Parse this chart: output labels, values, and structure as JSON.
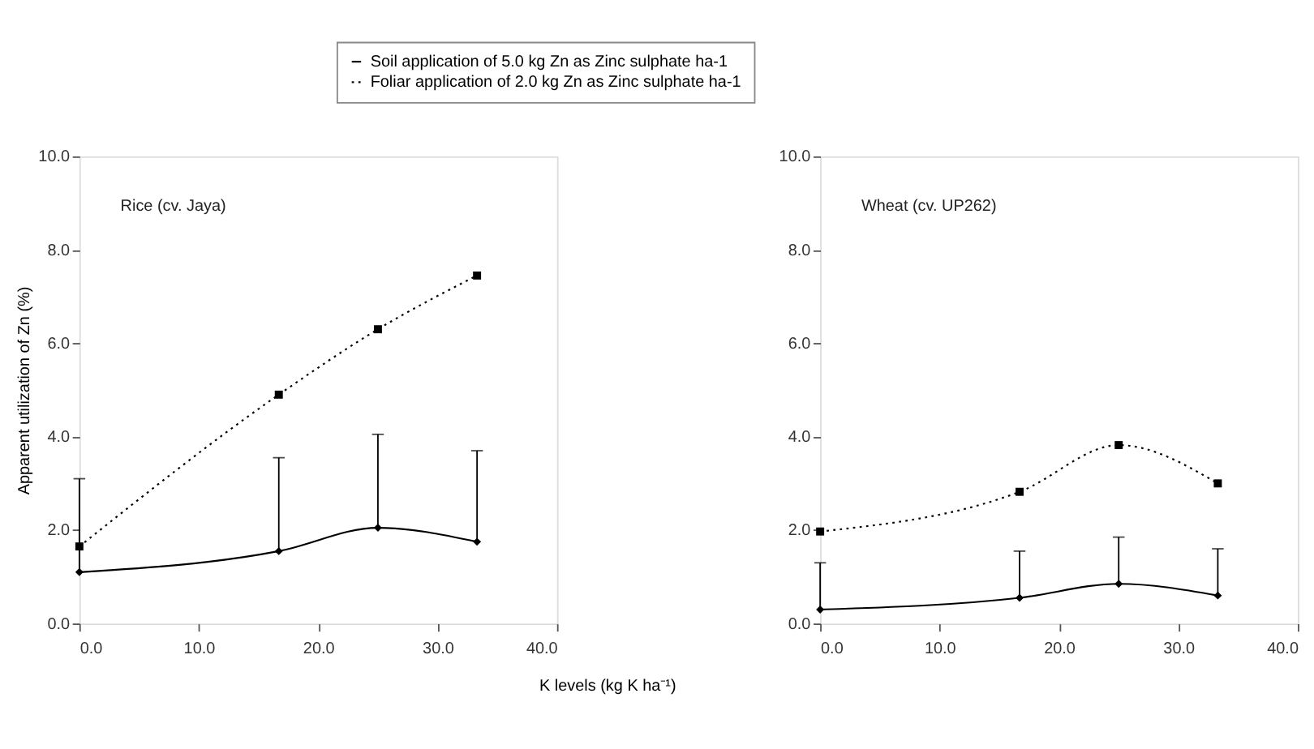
{
  "chart_data": [
    {
      "type": "line",
      "title": "Rice (cv. Jaya)",
      "xlabel": "K levels (kg K ha⁻¹)",
      "ylabel": "Apparent utilization of Zn (%)",
      "x": [
        0,
        16.7,
        25,
        33.3
      ],
      "series": [
        {
          "name": "Soil application of 5.0 kg Zn as Zinc sulphate ha-1",
          "color": "#000000",
          "marker": "diamond",
          "line_style": "solid",
          "values": [
            1.1,
            1.55,
            2.05,
            1.75
          ],
          "errors": [
            [
              1.1,
              3.1
            ],
            [
              1.55,
              3.55
            ],
            [
              2.05,
              4.05
            ],
            [
              1.75,
              3.7
            ]
          ]
        },
        {
          "name": "Foliar application of 2.0 kg Zn as Zinc sulphate ha-1",
          "color": "#000000",
          "marker": "square",
          "line_style": "dotted",
          "values": [
            1.65,
            4.9,
            6.3,
            7.45
          ]
        }
      ],
      "xlim": [
        0,
        40
      ],
      "xticks": [
        {
          "value": 0,
          "label": "0.0"
        },
        {
          "value": 10,
          "label": "10.0"
        },
        {
          "value": 20,
          "label": "20.0"
        },
        {
          "value": 30,
          "label": "30.0"
        },
        {
          "value": 40,
          "label": "40.0"
        }
      ],
      "ylim": [
        0,
        10
      ],
      "yticks": [
        {
          "value": 0,
          "label": "0.0"
        },
        {
          "value": 2,
          "label": "2.0"
        },
        {
          "value": 4,
          "label": "4.0"
        },
        {
          "value": 6,
          "label": "6.0"
        },
        {
          "value": 8,
          "label": "8.0"
        },
        {
          "value": 10,
          "label": "10.0"
        }
      ],
      "grid": false,
      "legend": "top"
    },
    {
      "type": "line",
      "title": "Wheat (cv. UP262)",
      "x": [
        0,
        16.7,
        25,
        33.3
      ],
      "series": [
        {
          "name": "Soil application of 5.0 kg Zn as Zinc sulphate ha-1",
          "color": "#000000",
          "marker": "diamond",
          "line_style": "solid",
          "values": [
            0.3,
            0.55,
            0.85,
            0.6
          ],
          "errors": [
            [
              0.3,
              1.3
            ],
            [
              0.55,
              1.55
            ],
            [
              0.85,
              1.85
            ],
            [
              0.6,
              1.6
            ]
          ]
        },
        {
          "name": "Foliar application of 2.0 kg Zn as Zinc sulphate ha-1",
          "color": "#000000",
          "marker": "square",
          "line_style": "dotted",
          "values": [
            1.97,
            2.82,
            3.82,
            3.0
          ]
        }
      ],
      "xlim": [
        0,
        40
      ],
      "xticks": [
        {
          "value": 0,
          "label": "0.0"
        },
        {
          "value": 10,
          "label": "10.0"
        },
        {
          "value": 20,
          "label": "20.0"
        },
        {
          "value": 30,
          "label": "30.0"
        },
        {
          "value": 40,
          "label": "40.0"
        }
      ],
      "ylim": [
        0,
        10
      ],
      "yticks": [
        {
          "value": 0,
          "label": "0.0"
        },
        {
          "value": 2,
          "label": "2.0"
        },
        {
          "value": 4,
          "label": "4.0"
        },
        {
          "value": 6,
          "label": "6.0"
        },
        {
          "value": 8,
          "label": "8.0"
        },
        {
          "value": 10,
          "label": "10.0"
        }
      ],
      "grid": false,
      "legend": "top"
    }
  ]
}
